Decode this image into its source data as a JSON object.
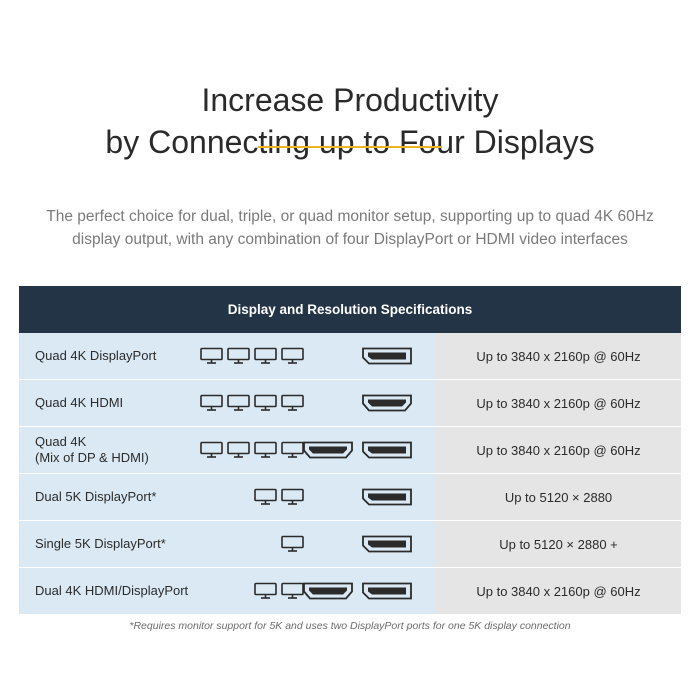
{
  "heading": {
    "line1": "Increase Productivity",
    "line2": "by Connecting up to Four Displays"
  },
  "subtitle": {
    "line1": "The perfect choice for dual, triple, or quad monitor setup, supporting up to quad 4K 60Hz",
    "line2": "display output, with any combination of four DisplayPort or HDMI video interfaces"
  },
  "colors": {
    "header_bg": "#243447",
    "accent": "#f2b322",
    "left_cell_bg": "#dbe9f4",
    "right_cell_bg": "#e5e5e5"
  },
  "table": {
    "header": "Display and Resolution Specifications",
    "rows": [
      {
        "label": "Quad 4K DisplayPort",
        "monitors": 4,
        "ports": [
          "displayport-icon"
        ],
        "resolution": "Up to 3840 x 2160p @ 60Hz"
      },
      {
        "label": "Quad 4K HDMI",
        "monitors": 4,
        "ports": [
          "hdmi-icon"
        ],
        "resolution": "Up to 3840 x 2160p @ 60Hz"
      },
      {
        "label": "Quad 4K\n(Mix of DP & HDMI)",
        "monitors": 4,
        "ports": [
          "hdmi-icon",
          "displayport-icon"
        ],
        "resolution": "Up to 3840 x 2160p @ 60Hz"
      },
      {
        "label": "Dual 5K DisplayPort*",
        "monitors": 2,
        "ports": [
          "displayport-icon"
        ],
        "resolution": "Up to 5120 × 2880"
      },
      {
        "label": "Single 5K DisplayPort*",
        "monitors": 1,
        "ports": [
          "displayport-icon"
        ],
        "resolution": "Up to 5120 × 2880 +"
      },
      {
        "label": "Dual 4K HDMI/DisplayPort",
        "monitors": 2,
        "ports": [
          "hdmi-icon",
          "displayport-icon"
        ],
        "resolution": "Up to 3840 x 2160p @ 60Hz"
      }
    ]
  },
  "footnote": "*Requires monitor support for 5K and uses two DisplayPort ports for one 5K display connection"
}
